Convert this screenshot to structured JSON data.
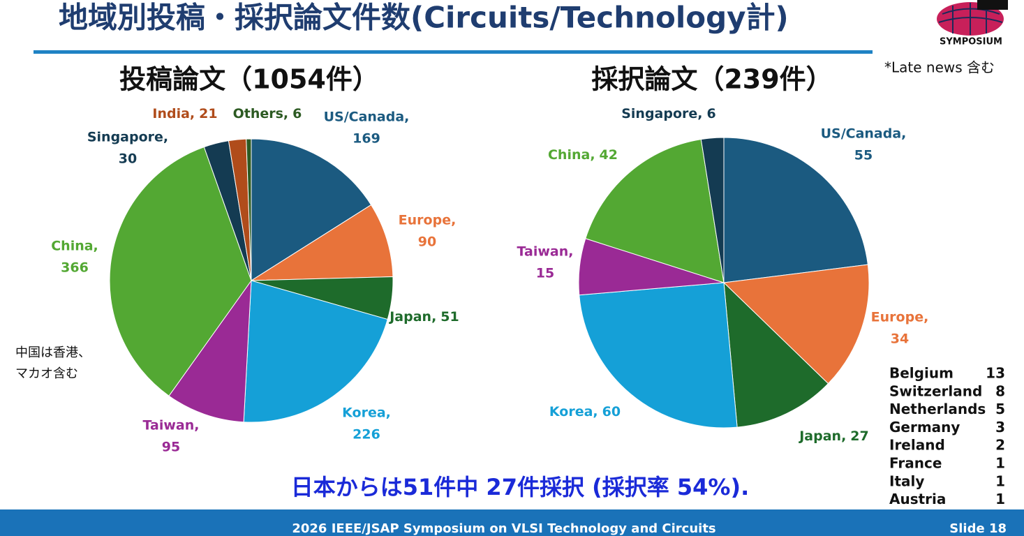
{
  "slide": {
    "title": "地域別投稿・採択論文件数(Circuits/Technology計)",
    "logo": "SYMPOSIUM",
    "note_late": "*Late news 含む",
    "note_china": [
      "中国は香港、",
      "マカオ含む"
    ],
    "summary": "日本からは51件中 27件採択 (採択率 54%).",
    "footer": "2026 IEEE/JSAP Symposium on VLSI Technology and Circuits",
    "slide_number": "Slide 18"
  },
  "table": {
    "rows": [
      [
        "Belgium",
        13
      ],
      [
        "Switzerland",
        8
      ],
      [
        "Netherlands",
        5
      ],
      [
        "Germany",
        3
      ],
      [
        "Ireland",
        2
      ],
      [
        "France",
        1
      ],
      [
        "Italy",
        1
      ],
      [
        "Austria",
        1
      ]
    ]
  },
  "chart_data": [
    {
      "type": "pie",
      "title": "投稿論文（1054件）",
      "categories": [
        "US/Canada,",
        "Europe,",
        "Japan,",
        "Korea,",
        "Taiwan,",
        "China,",
        "Singapore,",
        "India,",
        "Others,"
      ],
      "values": [
        169,
        90,
        51,
        226,
        95,
        366,
        30,
        21,
        6
      ],
      "colors": [
        "#1b5a80",
        "#e8733a",
        "#1e6b2b",
        "#15a0d7",
        "#9a2a95",
        "#53a833",
        "#143b52",
        "#b04c1b",
        "#2c5a22"
      ]
    },
    {
      "type": "pie",
      "title": "採択論文（239件）",
      "categories": [
        "US/Canada,",
        "Europe,",
        "Japan,",
        "Korea,",
        "Taiwan,",
        "China,",
        "Singapore,"
      ],
      "values": [
        55,
        34,
        27,
        60,
        15,
        42,
        6
      ],
      "colors": [
        "#1b5a80",
        "#e8733a",
        "#1e6b2b",
        "#15a0d7",
        "#9a2a95",
        "#53a833",
        "#143b52"
      ]
    }
  ]
}
